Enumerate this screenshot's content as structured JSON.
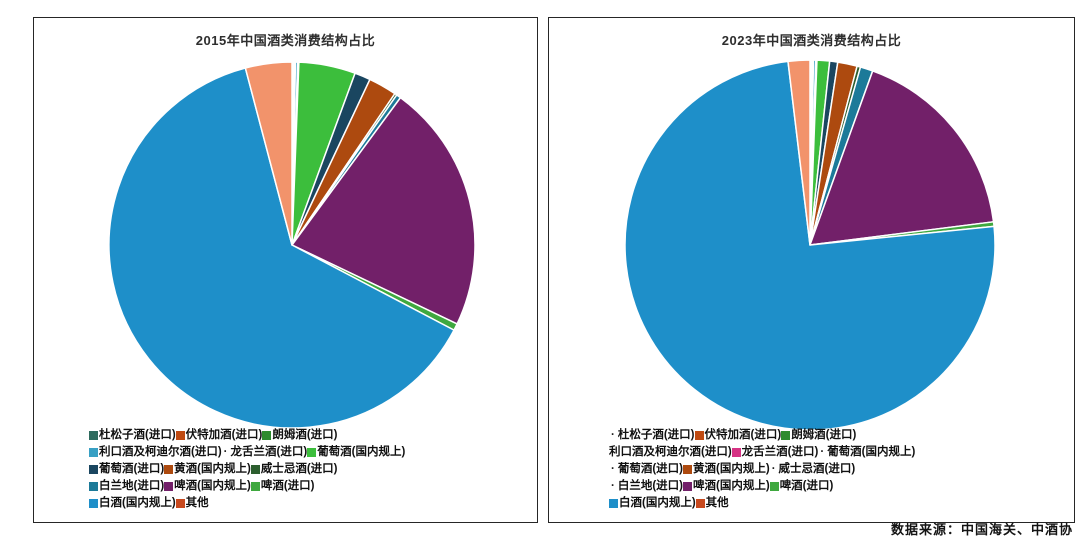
{
  "page": {
    "source_note": "数据来源：中国海关、中酒协"
  },
  "chart_data": [
    {
      "type": "pie",
      "title": "2015年中国酒类消费结构占比",
      "unit": "percent_share",
      "start_angle_deg": 90,
      "direction": "clockwise",
      "legend_position": "bottom-left",
      "items": [
        {
          "label": "杜松子酒(进口)",
          "value": 0.1,
          "color": "#2E6B5E",
          "marker": "square"
        },
        {
          "label": "伏特加酒(进口)",
          "value": 0.1,
          "color": "#BF4A12",
          "marker": "square"
        },
        {
          "label": "朗姆酒(进口)",
          "value": 0.1,
          "color": "#2E8B2E",
          "marker": "square"
        },
        {
          "label": "利口酒及柯迪尔酒(进口)",
          "value": 0.2,
          "color": "#38A0C4",
          "marker": "square"
        },
        {
          "label": "龙舌兰酒(进口)",
          "value": 0.1,
          "color": "#D63384",
          "marker": "dot"
        },
        {
          "label": "葡萄酒(国内规上)",
          "value": 5.0,
          "color": "#3CBE3C",
          "marker": "square"
        },
        {
          "label": "葡萄酒(进口)",
          "value": 1.4,
          "color": "#1A4660",
          "marker": "square"
        },
        {
          "label": "黄酒(国内规上)",
          "value": 2.5,
          "color": "#AD4A0F",
          "marker": "square"
        },
        {
          "label": "威士忌酒(进口)",
          "value": 0.2,
          "color": "#2C5E2E",
          "marker": "square"
        },
        {
          "label": "白兰地(进口)",
          "value": 0.4,
          "color": "#1C7A99",
          "marker": "square"
        },
        {
          "label": "啤酒(国内规上)",
          "value": 22.0,
          "color": "#722069",
          "marker": "square"
        },
        {
          "label": "啤酒(进口)",
          "value": 0.6,
          "color": "#3FA83F",
          "marker": "square"
        },
        {
          "label": "白酒(国内规上)",
          "value": 63.2,
          "color": "#1E8FC9",
          "marker": "square"
        },
        {
          "label": "其他",
          "value": 4.1,
          "color": "#F2936B",
          "marker": "square",
          "marker_color": "#C8491E"
        }
      ]
    },
    {
      "type": "pie",
      "title": "2023年中国酒类消费结构占比",
      "unit": "percent_share",
      "start_angle_deg": 90,
      "direction": "clockwise",
      "legend_position": "bottom-left",
      "items": [
        {
          "label": "杜松子酒(进口)",
          "value": 0.1,
          "color": "#2E6B5E",
          "marker": "dot"
        },
        {
          "label": "伏特加酒(进口)",
          "value": 0.1,
          "color": "#BF4A12",
          "marker": "square"
        },
        {
          "label": "朗姆酒(进口)",
          "value": 0.1,
          "color": "#2E8B2E",
          "marker": "square"
        },
        {
          "label": "利口酒及柯迪尔酒(进口)",
          "value": 0.2,
          "color": "#38A0C4",
          "marker": "none"
        },
        {
          "label": "龙舌兰酒(进口)",
          "value": 0.1,
          "color": "#D63384",
          "marker": "square"
        },
        {
          "label": "葡萄酒(国内规上)",
          "value": 1.1,
          "color": "#3CBE3C",
          "marker": "dot"
        },
        {
          "label": "葡萄酒(进口)",
          "value": 0.7,
          "color": "#1A4660",
          "marker": "dot"
        },
        {
          "label": "黄酒(国内规上)",
          "value": 1.7,
          "color": "#AD4A0F",
          "marker": "square"
        },
        {
          "label": "威士忌酒(进口)",
          "value": 0.3,
          "color": "#2C5E2E",
          "marker": "dot"
        },
        {
          "label": "白兰地(进口)",
          "value": 1.1,
          "color": "#1C7A99",
          "marker": "dot"
        },
        {
          "label": "啤酒(国内规上)",
          "value": 17.5,
          "color": "#722069",
          "marker": "square"
        },
        {
          "label": "啤酒(进口)",
          "value": 0.4,
          "color": "#3FA83F",
          "marker": "square"
        },
        {
          "label": "白酒(国内规上)",
          "value": 74.7,
          "color": "#1E8FC9",
          "marker": "square"
        },
        {
          "label": "其他",
          "value": 1.9,
          "color": "#F2936B",
          "marker": "square",
          "marker_color": "#C8491E"
        }
      ]
    }
  ]
}
